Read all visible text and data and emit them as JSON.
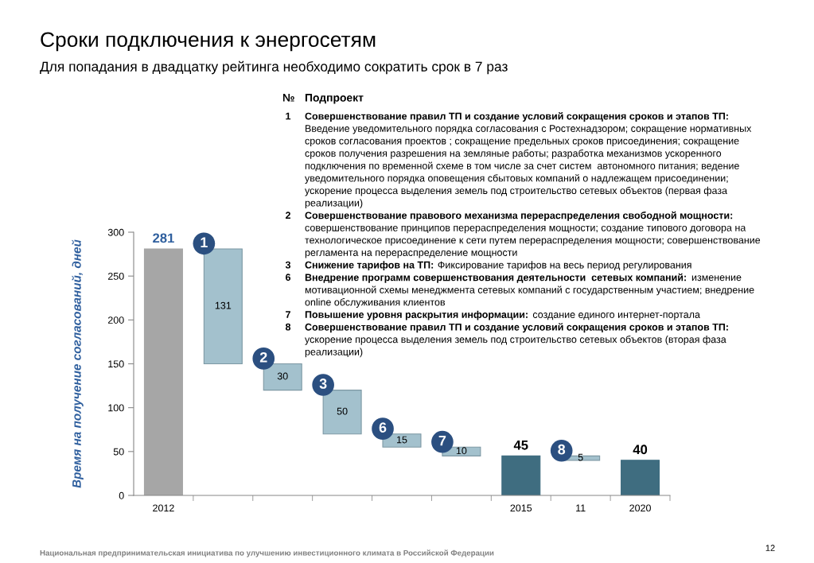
{
  "chart_data": {
    "type": "bar",
    "title": "Сроки подключения к энергосетям",
    "subtitle": "Для попадания в двадцатку рейтинга необходимо сократить срок в 7 раз",
    "ylabel": "Время на получение согласований, дней",
    "categories": [
      "2012",
      null,
      null,
      null,
      null,
      null,
      "2015",
      "11",
      "2020"
    ],
    "values": [
      281,
      131,
      30,
      50,
      15,
      10,
      45,
      5,
      40
    ],
    "base": [
      0,
      150,
      120,
      70,
      55,
      45,
      0,
      40,
      0
    ],
    "colors": [
      "#a6a6a6",
      "#a3c1cd",
      "#a3c1cd",
      "#a3c1cd",
      "#a3c1cd",
      "#a3c1cd",
      "#3f6d80",
      "#a3c1cd",
      "#3f6d80"
    ],
    "value_labels": [
      "281",
      "131",
      "30",
      "50",
      "15",
      "10",
      "45",
      "5",
      "40"
    ],
    "ylim": [
      0,
      300
    ],
    "yticks": [
      0,
      50,
      100,
      150,
      200,
      250,
      300
    ],
    "grid": false,
    "legend": false,
    "annotations": [
      "1",
      "2",
      "3",
      "6",
      "7",
      "8",
      "№",
      "Подпроект",
      "1",
      "Совершенствование правил ТП и создание условий сокращения сроков и этапов ТП:",
      "\nВведение уведомительного порядка согласования с Ростехнадзором; сокращение нормативных\nсроков согласования проектов ; сокращение предельных сроков присоединения; сокращение\nсроков получения разрешения на земляные работы; разработка механизмов ускоренного\nподключения по временной схеме в том числе за счет систем  автономного питания; ведение\nуведомительного порядка оповещения сбытовых компаний о надлежащем присоединении;\nускорение процесса выделения земель под строительство сетевых объектов (первая фаза\nреализации)",
      "2",
      "Совершенствование правового механизма перераспределения свободной мощности:",
      "\nсовершенствование принципов перераспределения мощности; создание типового договора на\nтехнологическое присоединение к сети путем перераспределения мощности; совершенствование\nрегламента на перераспределение мощности",
      "3",
      "Снижение тарифов на ТП:",
      "Фиксирование тарифов на весь период регулирования",
      "6",
      "Внедрение программ совершенствования деятельности  сетевых компаний:",
      "изменение\nмотивационной схемы менеджмента сетевых компаний с государственным участием; внедрение\nonline обслуживания клиентов",
      "7",
      "Повышение уровня раскрытия информации:",
      "создание единого интернет-портала",
      "8",
      "Совершенствование правил ТП и создание условий сокращения сроков и этапов ТП:",
      "\nускорение процесса выделения земель под строительство сетевых объектов (вторая фаза\nреализации)",
      "Национальная предпринимательская инициатива по улучшению инвестиционного климата в Российской Федерации",
      "12"
    ]
  }
}
